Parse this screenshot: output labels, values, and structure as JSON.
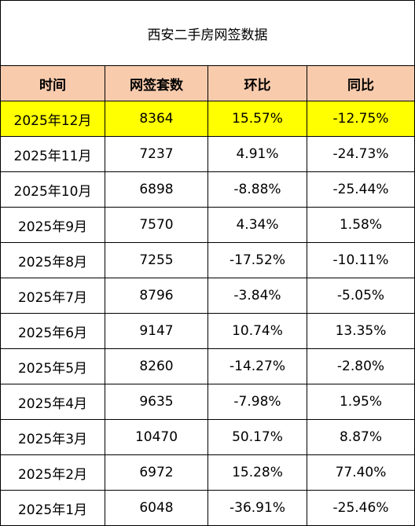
{
  "title": "西安二手房网签数据",
  "headers": [
    "时间",
    "网签套数",
    "环比",
    "同比"
  ],
  "highlight_color": "#ffff00",
  "header_color": "#f8cbad",
  "rows": [
    {
      "month": "2025年12月",
      "count": "8364",
      "mom": "15.57%",
      "yoy": "-12.75%",
      "highlighted": true
    },
    {
      "month": "2025年11月",
      "count": "7237",
      "mom": "4.91%",
      "yoy": "-24.73%",
      "highlighted": false
    },
    {
      "month": "2025年10月",
      "count": "6898",
      "mom": "-8.88%",
      "yoy": "-25.44%",
      "highlighted": false
    },
    {
      "month": "2025年9月",
      "count": "7570",
      "mom": "4.34%",
      "yoy": "1.58%",
      "highlighted": false
    },
    {
      "month": "2025年8月",
      "count": "7255",
      "mom": "-17.52%",
      "yoy": "-10.11%",
      "highlighted": false
    },
    {
      "month": "2025年7月",
      "count": "8796",
      "mom": "-3.84%",
      "yoy": "-5.05%",
      "highlighted": false
    },
    {
      "month": "2025年6月",
      "count": "9147",
      "mom": "10.74%",
      "yoy": "13.35%",
      "highlighted": false
    },
    {
      "month": "2025年5月",
      "count": "8260",
      "mom": "-14.27%",
      "yoy": "-2.80%",
      "highlighted": false
    },
    {
      "month": "2025年4月",
      "count": "9635",
      "mom": "-7.98%",
      "yoy": "1.95%",
      "highlighted": false
    },
    {
      "month": "2025年3月",
      "count": "10470",
      "mom": "50.17%",
      "yoy": "8.87%",
      "highlighted": false
    },
    {
      "month": "2025年2月",
      "count": "6972",
      "mom": "15.28%",
      "yoy": "77.40%",
      "highlighted": false
    },
    {
      "month": "2025年1月",
      "count": "6048",
      "mom": "-36.91%",
      "yoy": "-25.46%",
      "highlighted": false
    }
  ]
}
